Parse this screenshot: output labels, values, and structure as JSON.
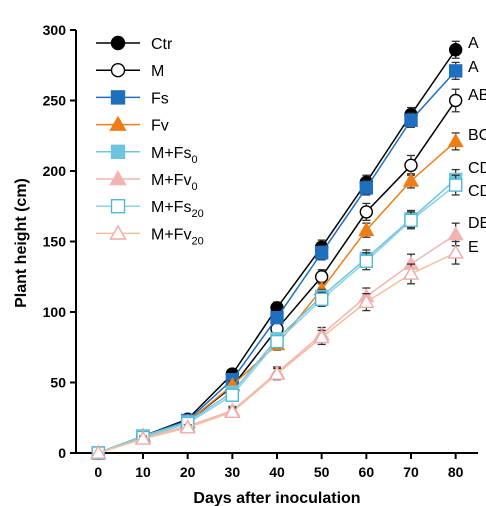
{
  "chart_data": {
    "type": "line",
    "title": "",
    "xlabel": "Days after inoculation",
    "ylabel": "Plant height (cm)",
    "x": [
      0,
      10,
      20,
      30,
      40,
      50,
      60,
      70,
      80
    ],
    "xlim": [
      -5,
      85
    ],
    "ylim": [
      0,
      300
    ],
    "x_ticks": [
      "0",
      "10",
      "20",
      "30",
      "40",
      "50",
      "60",
      "70",
      "80"
    ],
    "y_ticks": [
      "0",
      "50",
      "100",
      "150",
      "200",
      "250",
      "300"
    ],
    "grid": false,
    "legend_position": "top-left",
    "series": [
      {
        "name": "Ctr",
        "name_sub": "",
        "marker": "circle",
        "fill": "filled",
        "color": "#000000",
        "line_color": "#000000",
        "values": [
          0,
          12,
          24,
          56,
          103,
          146,
          192,
          240,
          286
        ],
        "errors": [
          0,
          2,
          2,
          3,
          4,
          5,
          5,
          5,
          6
        ],
        "letter": "A"
      },
      {
        "name": "M",
        "name_sub": "",
        "marker": "circle",
        "fill": "open",
        "color": "#000000",
        "line_color": "#000000",
        "values": [
          0,
          11,
          22,
          47,
          88,
          125,
          171,
          204,
          250
        ],
        "errors": [
          0,
          2,
          2,
          3,
          4,
          5,
          6,
          7,
          8
        ],
        "letter": "AB"
      },
      {
        "name": "Fs",
        "name_sub": "",
        "marker": "square",
        "fill": "filled",
        "color": "#1f6fbf",
        "line_color": "#1f6fbf",
        "values": [
          0,
          12,
          23,
          52,
          96,
          142,
          188,
          236,
          271
        ],
        "errors": [
          0,
          2,
          2,
          3,
          4,
          5,
          5,
          5,
          6
        ],
        "letter": "A"
      },
      {
        "name": "Fv",
        "name_sub": "",
        "marker": "triangle",
        "fill": "filled",
        "color": "#f07d14",
        "line_color": "#f07d14",
        "values": [
          0,
          12,
          22,
          48,
          77,
          116,
          158,
          193,
          221
        ],
        "errors": [
          0,
          2,
          2,
          3,
          4,
          5,
          5,
          5,
          6
        ],
        "letter": "BC"
      },
      {
        "name": "M+Fs",
        "name_sub": "0",
        "marker": "square",
        "fill": "filled",
        "color": "#6ec4e0",
        "line_color": "#6ec4e0",
        "values": [
          0,
          12,
          22,
          43,
          81,
          111,
          138,
          166,
          194
        ],
        "errors": [
          0,
          2,
          2,
          3,
          4,
          5,
          6,
          6,
          7
        ],
        "letter": "CD"
      },
      {
        "name": "M+Fv",
        "name_sub": "0",
        "marker": "triangle",
        "fill": "filled",
        "color": "#f3b3b3",
        "line_color": "#f3b3b3",
        "values": [
          0,
          11,
          19,
          30,
          57,
          84,
          111,
          134,
          155
        ],
        "errors": [
          0,
          2,
          2,
          3,
          4,
          5,
          6,
          7,
          8
        ],
        "letter": "DE"
      },
      {
        "name": "M+Fs",
        "name_sub": "20",
        "marker": "square",
        "fill": "open",
        "color": "#4fb8d8",
        "line_color": "#8fd0e6",
        "values": [
          0,
          11,
          21,
          41,
          79,
          109,
          136,
          165,
          190
        ],
        "errors": [
          0,
          2,
          2,
          3,
          4,
          5,
          6,
          6,
          7
        ],
        "letter": "CD"
      },
      {
        "name": "M+Fv",
        "name_sub": "20",
        "marker": "triangle",
        "fill": "open",
        "color": "#f0a8a8",
        "line_color": "#f5c09a",
        "values": [
          0,
          10,
          18,
          29,
          56,
          82,
          107,
          127,
          142
        ],
        "errors": [
          0,
          2,
          2,
          3,
          4,
          5,
          6,
          7,
          8
        ],
        "letter": "E"
      }
    ],
    "annotations": [
      "A",
      "A",
      "AB",
      "BC",
      "CD",
      "CD",
      "DE",
      "E"
    ]
  }
}
